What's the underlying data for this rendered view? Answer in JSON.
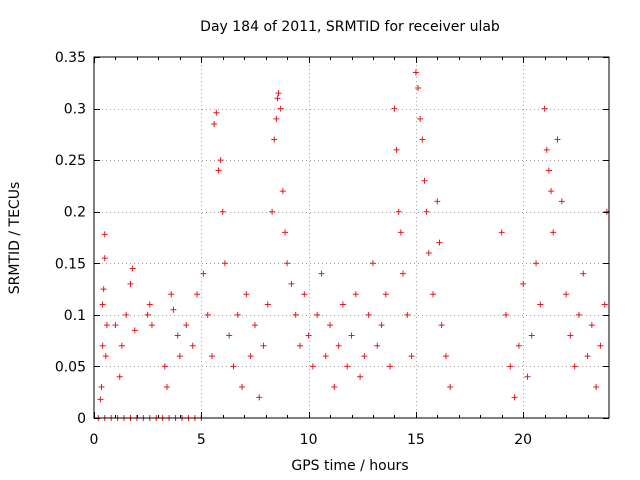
{
  "chart_data": {
    "type": "scatter",
    "title": "Day 184 of 2011, SRMTID for receiver ulab",
    "xlabel": "GPS time / hours",
    "ylabel": "SRMTID / TECUs",
    "xlim": [
      0,
      24
    ],
    "ylim": [
      0,
      0.35
    ],
    "x_ticks": [
      0,
      5,
      10,
      15,
      20
    ],
    "x_tick_labels": [
      "0",
      "5",
      "10",
      "15",
      "20"
    ],
    "y_ticks": [
      0,
      0.05,
      0.1,
      0.15,
      0.2,
      0.25,
      0.3,
      0.35
    ],
    "y_tick_labels": [
      "0",
      "0.05",
      "0.1",
      "0.15",
      "0.2",
      "0.25",
      "0.3",
      "0.35"
    ],
    "grid": true,
    "marker": "+",
    "series": [
      {
        "name": "SRMTID",
        "color": "#e41a1c",
        "x": [
          0.2,
          0.5,
          0.8,
          1.1,
          1.4,
          1.7,
          2.0,
          2.3,
          2.6,
          2.9,
          3.2,
          3.5,
          3.8,
          4.1,
          4.4,
          4.7,
          5.0,
          0.3,
          0.35,
          0.4,
          0.4,
          0.45,
          0.5,
          0.5,
          0.55,
          0.6,
          1.0,
          1.2,
          1.3,
          1.5,
          1.7,
          1.8,
          1.9,
          2.5,
          2.6,
          2.7,
          3.3,
          3.4,
          3.6,
          3.7,
          3.9,
          4.0,
          4.3,
          4.6,
          4.8,
          5.1,
          5.3,
          5.5,
          5.6,
          5.7,
          5.8,
          5.9,
          6.0,
          6.1,
          6.3,
          6.5,
          6.7,
          6.9,
          7.1,
          7.3,
          7.5,
          7.7,
          7.9,
          8.1,
          8.3,
          8.4,
          8.5,
          8.55,
          8.6,
          8.7,
          8.8,
          8.9,
          9.0,
          9.2,
          9.4,
          9.6,
          9.8,
          10.0,
          10.2,
          10.4,
          10.6,
          10.8,
          11.0,
          11.2,
          11.4,
          11.6,
          11.8,
          12.0,
          12.2,
          12.4,
          12.6,
          12.8,
          13.0,
          13.2,
          13.4,
          13.6,
          13.8,
          14.0,
          14.1,
          14.2,
          14.3,
          14.4,
          14.6,
          14.8,
          15.0,
          15.1,
          15.2,
          15.3,
          15.4,
          15.5,
          15.6,
          15.8,
          16.0,
          16.1,
          16.2,
          16.4,
          16.6,
          19.0,
          19.2,
          19.4,
          19.6,
          19.8,
          20.0,
          20.2,
          20.4,
          20.6,
          20.8,
          21.0,
          21.1,
          21.2,
          21.3,
          21.4,
          21.6,
          21.8,
          22.0,
          22.2,
          22.4,
          22.6,
          22.8,
          23.0,
          23.2,
          23.4,
          23.6,
          23.8,
          23.9
        ],
        "y": [
          0,
          0,
          0,
          0,
          0,
          0,
          0,
          0,
          0,
          0,
          0,
          0,
          0,
          0,
          0,
          0,
          0,
          0.018,
          0.03,
          0.07,
          0.11,
          0.125,
          0.155,
          0.178,
          0.06,
          0.09,
          0.09,
          0.04,
          0.07,
          0.1,
          0.13,
          0.145,
          0.085,
          0.1,
          0.11,
          0.09,
          0.05,
          0.03,
          0.12,
          0.105,
          0.08,
          0.06,
          0.09,
          0.07,
          0.12,
          0.14,
          0.1,
          0.06,
          0.285,
          0.296,
          0.24,
          0.25,
          0.2,
          0.15,
          0.08,
          0.05,
          0.1,
          0.03,
          0.12,
          0.06,
          0.09,
          0.02,
          0.07,
          0.11,
          0.2,
          0.27,
          0.29,
          0.31,
          0.315,
          0.3,
          0.22,
          0.18,
          0.15,
          0.13,
          0.1,
          0.07,
          0.12,
          0.08,
          0.05,
          0.1,
          0.14,
          0.06,
          0.09,
          0.03,
          0.07,
          0.11,
          0.05,
          0.08,
          0.12,
          0.04,
          0.06,
          0.1,
          0.15,
          0.07,
          0.09,
          0.12,
          0.05,
          0.3,
          0.26,
          0.2,
          0.18,
          0.14,
          0.1,
          0.06,
          0.335,
          0.32,
          0.29,
          0.27,
          0.23,
          0.2,
          0.16,
          0.12,
          0.21,
          0.17,
          0.09,
          0.06,
          0.03,
          0.18,
          0.1,
          0.05,
          0.02,
          0.07,
          0.13,
          0.04,
          0.08,
          0.15,
          0.11,
          0.3,
          0.26,
          0.24,
          0.22,
          0.18,
          0.27,
          0.21,
          0.12,
          0.08,
          0.05,
          0.1,
          0.14,
          0.06,
          0.09,
          0.03,
          0.07,
          0.11,
          0.2
        ]
      }
    ]
  }
}
